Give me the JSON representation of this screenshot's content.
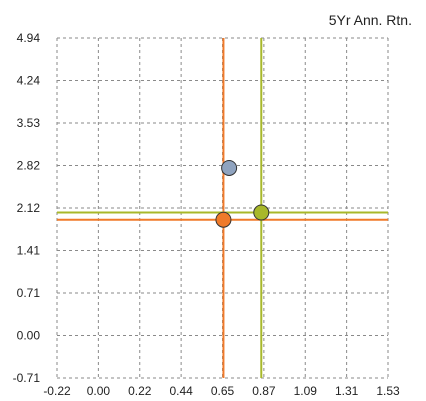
{
  "chart_data": {
    "type": "scatter",
    "title": "",
    "xlabel": "",
    "ylabel": "5Yr Ann. Rtn.",
    "x_ticks": [
      "-0.22",
      "0.00",
      "0.22",
      "0.44",
      "0.65",
      "0.87",
      "1.09",
      "1.31",
      "1.53"
    ],
    "y_ticks": [
      "4.94",
      "4.24",
      "3.53",
      "2.82",
      "2.12",
      "1.41",
      "0.71",
      "0.00",
      "-0.71"
    ],
    "xlim": [
      -0.22,
      1.53
    ],
    "ylim": [
      -0.71,
      4.94
    ],
    "grid": true,
    "points": [
      {
        "x": 0.69,
        "y": 2.78,
        "color": "#8fa3bf"
      },
      {
        "x": 0.66,
        "y": 1.92,
        "color": "#f07a2a",
        "crosshair": true
      },
      {
        "x": 0.86,
        "y": 2.04,
        "color": "#a8b82a",
        "crosshair": true
      }
    ]
  }
}
